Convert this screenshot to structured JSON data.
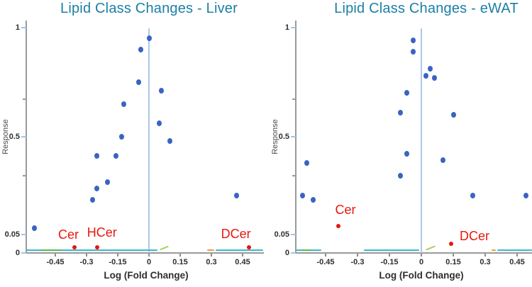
{
  "figure": {
    "background": "#ffffff",
    "description_visible_text_only": true
  },
  "colors": {
    "title_teal": "#1b7fa5",
    "point_blue": "#3a63c2",
    "highlight_red": "#e9150d",
    "axis_gray": "#9a9a9a",
    "tick_label_dark": "#2e2e2e",
    "axis_title_gray": "#4a4a4a",
    "zero_line_blue": "#aac9ea",
    "tick_blue": "#a2c4e8",
    "trace_cyan": "#3cb8cf",
    "trace_green": "#55b94e",
    "trace_lime": "#a6d455",
    "trace_orange": "#f29b38"
  },
  "chart_data": [
    {
      "type": "scatter",
      "title": "Lipid Class Changes - Liver",
      "xlabel": "Log (Fold Change)",
      "ylabel": "Response",
      "xlim": [
        -0.62,
        0.55
      ],
      "ylim": [
        0,
        1
      ],
      "x_ticks": [
        -0.45,
        -0.3,
        -0.15,
        0,
        0.15,
        0.3,
        0.45
      ],
      "y_ticks": [
        1,
        0.5,
        0.05,
        0
      ],
      "y_minor_ticks": [
        0.67,
        0.32
      ],
      "y_scale": "non-linear (0 to 0.05 region expanded)",
      "grid": false,
      "zero_reference_line_x": 0,
      "series": [
        {
          "name": "lipid classes",
          "marker": "circle",
          "size": 8,
          "color": "#3a63c2",
          "points": [
            [
              -0.55,
              0.08
            ],
            [
              -0.27,
              0.21
            ],
            [
              -0.25,
              0.26
            ],
            [
              -0.2,
              0.29
            ],
            [
              -0.25,
              0.41
            ],
            [
              -0.16,
              0.41
            ],
            [
              -0.13,
              0.5
            ],
            [
              -0.12,
              0.65
            ],
            [
              -0.05,
              0.75
            ],
            [
              -0.04,
              0.9
            ],
            [
              0.0,
              0.95
            ],
            [
              0.05,
              0.56
            ],
            [
              0.06,
              0.71
            ],
            [
              0.1,
              0.48
            ],
            [
              0.42,
              0.23
            ]
          ]
        },
        {
          "name": "highlighted ceramide classes",
          "marker": "circle",
          "size": 6,
          "color": "#e9150d",
          "points": [
            [
              -0.36,
              0.015
            ],
            [
              -0.25,
              0.015
            ],
            [
              0.48,
              0.015
            ]
          ],
          "labels": [
            "Cer",
            "HCer",
            "DCer"
          ],
          "label_offsets": [
            [
              -8,
              -18
            ],
            [
              7,
              -21
            ],
            [
              -18,
              -19
            ]
          ]
        }
      ],
      "baseline_traces": [
        {
          "x1": -0.59,
          "x2": 0.04,
          "color": "cyan"
        },
        {
          "x1": -0.52,
          "x2": -0.42,
          "color": "green"
        },
        {
          "x1": 0.05,
          "x2": 0.095,
          "color": "lime",
          "rise": true
        },
        {
          "x1": 0.28,
          "x2": 0.315,
          "color": "orange"
        },
        {
          "x1": 0.32,
          "x2": 0.55,
          "color": "cyan"
        }
      ]
    },
    {
      "type": "scatter",
      "title": "Lipid Class Changes - eWAT",
      "xlabel": "Log (Fold Change)",
      "ylabel": "Response",
      "xlim": [
        -0.6,
        0.52
      ],
      "ylim": [
        0,
        1
      ],
      "x_ticks": [
        -0.45,
        -0.3,
        -0.15,
        0,
        0.15,
        0.3,
        0.45
      ],
      "y_ticks": [
        1,
        0.5,
        0.05,
        0
      ],
      "y_minor_ticks": [
        0.67,
        0.32
      ],
      "y_scale": "non-linear (0 to 0.05 region expanded)",
      "grid": false,
      "zero_reference_line_x": 0,
      "series": [
        {
          "name": "lipid classes",
          "marker": "circle",
          "size": 8,
          "color": "#3a63c2",
          "points": [
            [
              -0.56,
              0.23
            ],
            [
              -0.54,
              0.38
            ],
            [
              -0.51,
              0.21
            ],
            [
              -0.1,
              0.61
            ],
            [
              -0.1,
              0.32
            ],
            [
              -0.07,
              0.7
            ],
            [
              -0.07,
              0.42
            ],
            [
              -0.04,
              0.94
            ],
            [
              -0.04,
              0.89
            ],
            [
              0.02,
              0.78
            ],
            [
              0.04,
              0.81
            ],
            [
              0.06,
              0.77
            ],
            [
              0.1,
              0.39
            ],
            [
              0.15,
              0.6
            ],
            [
              0.24,
              0.23
            ],
            [
              0.49,
              0.23
            ]
          ]
        },
        {
          "name": "highlighted ceramide classes",
          "marker": "circle",
          "size": 6,
          "color": "#e9150d",
          "points": [
            [
              -0.39,
              0.09
            ],
            [
              0.14,
              0.025
            ]
          ],
          "labels": [
            "Cer",
            "DCer"
          ],
          "label_offsets": [
            [
              10,
              -23
            ],
            [
              33,
              -11
            ]
          ]
        }
      ],
      "baseline_traces": [
        {
          "x1": -0.59,
          "x2": -0.47,
          "color": "cyan"
        },
        {
          "x1": -0.565,
          "x2": -0.52,
          "color": "green"
        },
        {
          "x1": -0.27,
          "x2": -0.01,
          "color": "cyan"
        },
        {
          "x1": 0.02,
          "x2": 0.065,
          "color": "lime",
          "rise": true
        },
        {
          "x1": 0.33,
          "x2": 0.35,
          "color": "orange"
        },
        {
          "x1": 0.355,
          "x2": 0.52,
          "color": "cyan"
        }
      ]
    }
  ]
}
